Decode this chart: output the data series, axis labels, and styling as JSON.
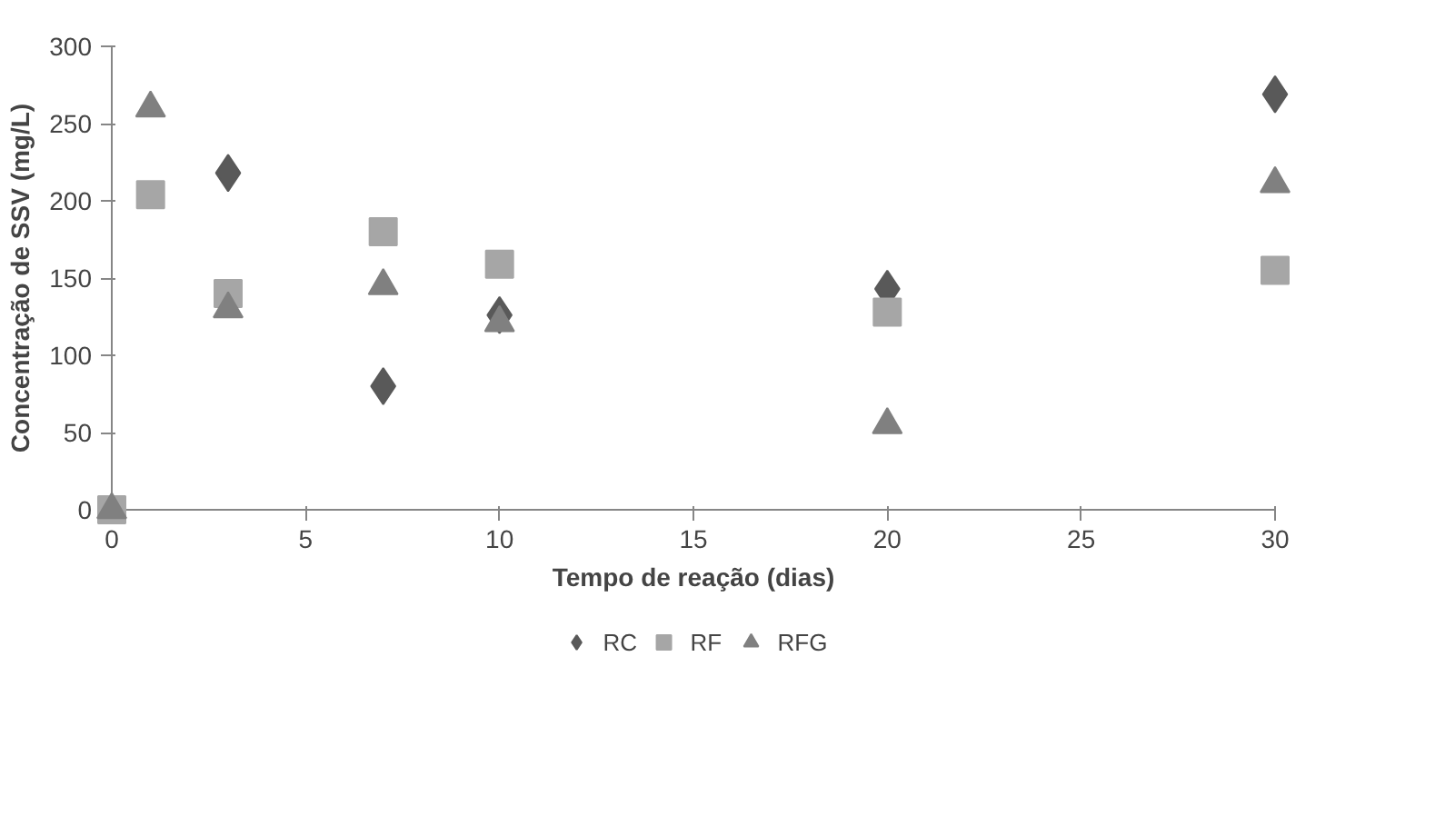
{
  "chart_data": {
    "type": "scatter",
    "xlabel": "Tempo de reação (dias)",
    "ylabel": "Concentração de SSV (mg/L)",
    "xlim": [
      0,
      30
    ],
    "ylim": [
      0,
      300
    ],
    "xticks": [
      0,
      5,
      10,
      15,
      20,
      25,
      30
    ],
    "yticks": [
      0,
      50,
      100,
      150,
      200,
      250,
      300
    ],
    "grid": false,
    "legend": "bottom",
    "series": [
      {
        "name": "RC",
        "color": "#595959",
        "marker": "diamond",
        "x": [
          3,
          7,
          10,
          20,
          30
        ],
        "values": [
          218,
          80,
          126,
          143,
          269
        ]
      },
      {
        "name": "RF",
        "color": "#a6a6a6",
        "marker": "square",
        "x": [
          0,
          1,
          3,
          7,
          10,
          20,
          30
        ],
        "values": [
          0,
          204,
          140,
          180,
          159,
          128,
          155
        ]
      },
      {
        "name": "RFG",
        "color": "#808080",
        "marker": "triangle",
        "x": [
          0,
          1,
          3,
          7,
          10,
          20,
          30
        ],
        "values": [
          0,
          260,
          130,
          145,
          121,
          55,
          211
        ]
      }
    ]
  }
}
